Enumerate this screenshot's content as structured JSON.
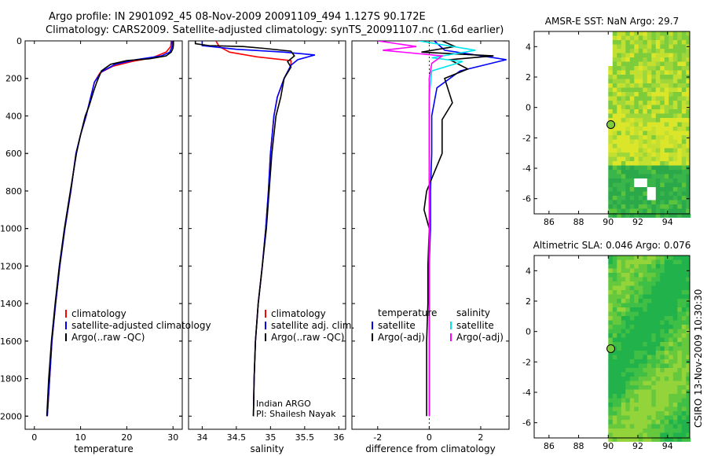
{
  "title_line1": "Argo profile: IN 2901092_45 08-Nov-2009 20091109_494 1.127S 90.172E",
  "title_line2": "Climatology: CARS2009. Satellite-adjusted climatology: synTS_20091107.nc (1.6d earlier)",
  "side_label": "CSIRO 13-Nov-2009 10:30:30",
  "colors": {
    "climatology": "#ff0000",
    "satellite": "#0000ff",
    "argo": "#000000",
    "salinity_satellite": "#00e5ee",
    "salinity_argo": "#ff00ff"
  },
  "chart_data": [
    {
      "id": "temperature",
      "type": "line",
      "xlabel": "temperature",
      "ylabel": "",
      "xlim": [
        -2,
        32
      ],
      "ylim": [
        2070,
        0
      ],
      "y_reversed": true,
      "xticks": [
        "0",
        "10",
        "20",
        "30"
      ],
      "xtick_values": [
        0,
        10,
        20,
        30
      ],
      "yticks": [
        "0",
        "200",
        "400",
        "600",
        "800",
        "1000",
        "1200",
        "1400",
        "1600",
        "1800",
        "2000"
      ],
      "ytick_values": [
        0,
        200,
        400,
        600,
        800,
        1000,
        1200,
        1400,
        1600,
        1800,
        2000
      ],
      "legend": [
        "climatology",
        "satellite-adjusted climatology",
        "Argo(..raw -QC)"
      ],
      "series": [
        {
          "name": "climatology",
          "color": "#ff0000",
          "points": [
            [
              29.6,
              0
            ],
            [
              29.5,
              30
            ],
            [
              28.5,
              60
            ],
            [
              25.5,
              90
            ],
            [
              21,
              110
            ],
            [
              17,
              135
            ],
            [
              14.2,
              170
            ],
            [
              13,
              220
            ],
            [
              12.2,
              300
            ],
            [
              11.2,
              400
            ],
            [
              10,
              500
            ],
            [
              9,
              600
            ],
            [
              7.9,
              800
            ],
            [
              6.6,
              1000
            ],
            [
              5.5,
              1200
            ],
            [
              4.6,
              1400
            ],
            [
              3.8,
              1600
            ],
            [
              3.3,
              1800
            ],
            [
              2.8,
              2000
            ]
          ]
        },
        {
          "name": "satellite-adjusted climatology",
          "color": "#0000ff",
          "points": [
            [
              29.8,
              0
            ],
            [
              29.8,
              30
            ],
            [
              29.3,
              60
            ],
            [
              27.5,
              80
            ],
            [
              22,
              100
            ],
            [
              17.5,
              125
            ],
            [
              14.5,
              165
            ],
            [
              13,
              220
            ],
            [
              12.2,
              300
            ],
            [
              11.2,
              400
            ],
            [
              10,
              500
            ],
            [
              9,
              600
            ],
            [
              7.9,
              800
            ],
            [
              6.6,
              1000
            ],
            [
              5.5,
              1200
            ],
            [
              4.6,
              1400
            ],
            [
              3.8,
              1600
            ],
            [
              3.3,
              1800
            ],
            [
              2.8,
              2000
            ]
          ]
        },
        {
          "name": "Argo(..raw -QC)",
          "color": "#000000",
          "points": [
            [
              30.1,
              0
            ],
            [
              30.1,
              20
            ],
            [
              30,
              40
            ],
            [
              29.6,
              60
            ],
            [
              28.5,
              80
            ],
            [
              25,
              95
            ],
            [
              20,
              105
            ],
            [
              16.5,
              125
            ],
            [
              14.5,
              160
            ],
            [
              13.5,
              220
            ],
            [
              12.8,
              270
            ],
            [
              11.8,
              350
            ],
            [
              11,
              400
            ],
            [
              10,
              500
            ],
            [
              9.1,
              600
            ],
            [
              7.8,
              800
            ],
            [
              6.5,
              1000
            ],
            [
              5.4,
              1200
            ],
            [
              4.5,
              1400
            ],
            [
              3.7,
              1600
            ],
            [
              3.1,
              1800
            ],
            [
              2.7,
              2000
            ]
          ]
        }
      ]
    },
    {
      "id": "salinity",
      "type": "line",
      "xlabel": "salinity",
      "xlim": [
        33.8,
        36.1
      ],
      "ylim": [
        2070,
        0
      ],
      "y_reversed": true,
      "xticks": [
        "34",
        "34.5",
        "35",
        "35.5",
        "36"
      ],
      "xtick_values": [
        34,
        34.5,
        35,
        35.5,
        36
      ],
      "legend": [
        "climatology",
        "satellite adj. clim.",
        "Argo(..raw -QC)"
      ],
      "annotation": [
        "Indian ARGO",
        "PI: Shailesh Nayak"
      ],
      "series": [
        {
          "name": "climatology",
          "color": "#ff0000",
          "points": [
            [
              34.2,
              0
            ],
            [
              34.25,
              30
            ],
            [
              34.4,
              60
            ],
            [
              34.8,
              85
            ],
            [
              35.3,
              105
            ],
            [
              35.3,
              130
            ],
            [
              35.2,
              200
            ],
            [
              35.1,
              300
            ],
            [
              35.05,
              400
            ],
            [
              35,
              600
            ],
            [
              34.97,
              800
            ],
            [
              34.93,
              1000
            ],
            [
              34.88,
              1200
            ],
            [
              34.82,
              1400
            ],
            [
              34.78,
              1600
            ],
            [
              34.76,
              1800
            ],
            [
              34.75,
              2000
            ]
          ]
        },
        {
          "name": "satellite adj. clim.",
          "color": "#0000ff",
          "points": [
            [
              34.0,
              0
            ],
            [
              34.0,
              25
            ],
            [
              34.5,
              45
            ],
            [
              35.2,
              60
            ],
            [
              35.65,
              75
            ],
            [
              35.4,
              100
            ],
            [
              35.3,
              130
            ],
            [
              35.2,
              200
            ],
            [
              35.1,
              300
            ],
            [
              35.05,
              400
            ],
            [
              35,
              600
            ],
            [
              34.97,
              800
            ],
            [
              34.93,
              1000
            ],
            [
              34.88,
              1200
            ],
            [
              34.82,
              1400
            ],
            [
              34.78,
              1600
            ],
            [
              34.76,
              1800
            ],
            [
              34.75,
              2000
            ]
          ]
        },
        {
          "name": "Argo(..raw -QC)",
          "color": "#000000",
          "points": [
            [
              33.9,
              0
            ],
            [
              33.9,
              15
            ],
            [
              34.1,
              25
            ],
            [
              34.6,
              30
            ],
            [
              34.9,
              40
            ],
            [
              35.3,
              55
            ],
            [
              35.35,
              80
            ],
            [
              35.25,
              110
            ],
            [
              35.3,
              140
            ],
            [
              35.2,
              200
            ],
            [
              35.15,
              300
            ],
            [
              35.08,
              400
            ],
            [
              35.05,
              500
            ],
            [
              35.02,
              600
            ],
            [
              34.98,
              800
            ],
            [
              34.94,
              1000
            ],
            [
              34.88,
              1200
            ],
            [
              34.82,
              1400
            ],
            [
              34.78,
              1600
            ],
            [
              34.76,
              1800
            ],
            [
              34.75,
              2000
            ]
          ]
        }
      ]
    },
    {
      "id": "difference",
      "type": "line",
      "xlabel": "difference from climatology",
      "xlim": [
        -3,
        3.1
      ],
      "ylim": [
        2070,
        0
      ],
      "y_reversed": true,
      "xticks": [
        "-2",
        "0",
        "2"
      ],
      "xtick_values": [
        -2,
        0,
        2
      ],
      "legend": {
        "temperature_header": "temperature",
        "salinity_header": "salinity",
        "temperature_items": [
          "satellite",
          "Argo(-adj)"
        ],
        "salinity_items": [
          "satellite",
          "Argo(-adj)"
        ]
      },
      "series": [
        {
          "name": "temperature satellite",
          "color": "#0000ff",
          "points": [
            [
              0.2,
              0
            ],
            [
              0.6,
              50
            ],
            [
              3.0,
              100
            ],
            [
              2.4,
              120
            ],
            [
              1.2,
              160
            ],
            [
              0.3,
              250
            ],
            [
              0.1,
              400
            ],
            [
              0.1,
              600
            ],
            [
              0.05,
              800
            ],
            [
              0.05,
              1000
            ],
            [
              0,
              1200
            ],
            [
              0,
              1400
            ],
            [
              0,
              1600
            ],
            [
              0,
              1800
            ],
            [
              0,
              2000
            ]
          ]
        },
        {
          "name": "temperature Argo(-adj)",
          "color": "#000000",
          "points": [
            [
              0.5,
              0
            ],
            [
              1.0,
              30
            ],
            [
              -0.3,
              60
            ],
            [
              2.5,
              80
            ],
            [
              0.8,
              100
            ],
            [
              1.5,
              150
            ],
            [
              0.6,
              200
            ],
            [
              0.9,
              330
            ],
            [
              0.5,
              420
            ],
            [
              0.5,
              600
            ],
            [
              0.2,
              700
            ],
            [
              -0.1,
              800
            ],
            [
              -0.2,
              900
            ],
            [
              0,
              1000
            ],
            [
              -0.05,
              1200
            ],
            [
              -0.05,
              1400
            ],
            [
              -0.1,
              1600
            ],
            [
              -0.1,
              1800
            ],
            [
              -0.1,
              2000
            ]
          ]
        },
        {
          "name": "salinity satellite",
          "color": "#00e5ee",
          "points": [
            [
              -0.4,
              0
            ],
            [
              1.8,
              50
            ],
            [
              0.1,
              90
            ],
            [
              1.3,
              110
            ],
            [
              0.1,
              160
            ],
            [
              0,
              300
            ],
            [
              0,
              600
            ],
            [
              0,
              1000
            ],
            [
              0,
              1400
            ],
            [
              0,
              1800
            ],
            [
              0,
              2000
            ]
          ]
        },
        {
          "name": "salinity Argo(-adj)",
          "color": "#ff00ff",
          "points": [
            [
              -2.0,
              0
            ],
            [
              -0.5,
              30
            ],
            [
              -1.8,
              50
            ],
            [
              0.5,
              80
            ],
            [
              0.1,
              120
            ],
            [
              0,
              200
            ],
            [
              0,
              400
            ],
            [
              0,
              800
            ],
            [
              0,
              1200
            ],
            [
              0,
              1600
            ],
            [
              0,
              2000
            ]
          ]
        }
      ]
    },
    {
      "id": "amsre_sst",
      "type": "heatmap",
      "title": "AMSR-E SST: NaN Argo: 29.7",
      "xlim": [
        85,
        95.5
      ],
      "ylim": [
        -7,
        5
      ],
      "xticks": [
        "86",
        "88",
        "90",
        "92",
        "94"
      ],
      "xtick_values": [
        86,
        88,
        90,
        92,
        94
      ],
      "yticks": [
        "4",
        "2",
        "0",
        "-2",
        "-4",
        "-6"
      ],
      "ytick_values": [
        4,
        2,
        0,
        -2,
        -4,
        -6
      ],
      "data_lon_range": [
        90,
        95.5
      ],
      "argo_position": [
        90.172,
        -1.127
      ]
    },
    {
      "id": "altimetric_sla",
      "type": "heatmap",
      "title": "Altimetric SLA: 0.046 Argo: 0.076",
      "xlim": [
        85,
        95.5
      ],
      "ylim": [
        -7,
        5
      ],
      "xticks": [
        "86",
        "88",
        "90",
        "92",
        "94"
      ],
      "xtick_values": [
        86,
        88,
        90,
        92,
        94
      ],
      "yticks": [
        "4",
        "2",
        "0",
        "-2",
        "-4",
        "-6"
      ],
      "ytick_values": [
        4,
        2,
        0,
        -2,
        -4,
        -6
      ],
      "data_lon_range": [
        90,
        95.5
      ],
      "argo_position": [
        90.172,
        -1.127
      ]
    }
  ]
}
